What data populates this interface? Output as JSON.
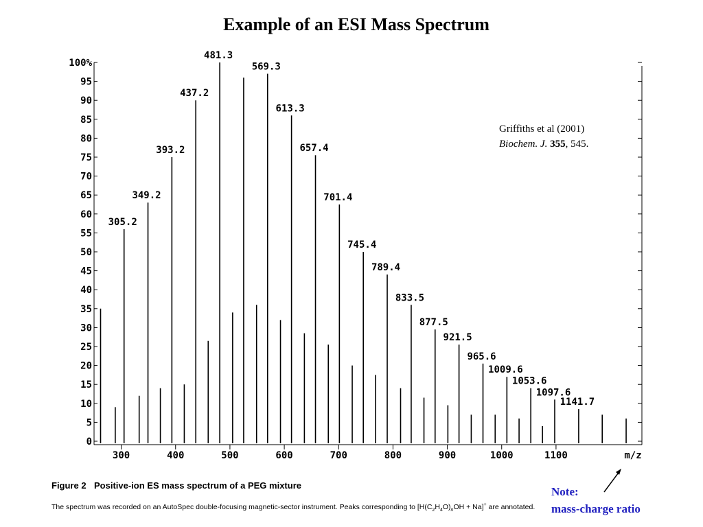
{
  "chart_data": {
    "type": "spectrum",
    "title": "Example of an ESI Mass Spectrum",
    "xlabel": "m/z",
    "xlim": [
      250,
      1258
    ],
    "xticks": [
      300,
      400,
      500,
      600,
      700,
      800,
      900,
      1000,
      1100
    ],
    "ylim": [
      0,
      100
    ],
    "yticks": [
      0,
      5,
      10,
      15,
      20,
      25,
      30,
      35,
      40,
      45,
      50,
      55,
      60,
      65,
      70,
      75,
      80,
      85,
      90,
      95,
      {
        "value": 100,
        "label": "100%"
      }
    ],
    "color": "#000000",
    "peaks": {
      "x": [
        305.2,
        349.2,
        393.2,
        437.2,
        481.3,
        569.3,
        613.3,
        657.4,
        701.4,
        745.4,
        789.4,
        833.5,
        877.5,
        921.5,
        965.6,
        1009.6,
        1053.6,
        1097.6,
        1141.7
      ],
      "values": [
        56,
        63,
        75,
        90,
        100,
        97,
        86,
        75.5,
        62.5,
        50,
        44,
        36,
        29.5,
        25.5,
        20.5,
        17,
        14,
        11,
        8.5
      ]
    },
    "minor_peaks": {
      "x": [
        262,
        289,
        333,
        372,
        416,
        460,
        505,
        525.3,
        549,
        593,
        637,
        681,
        725,
        768,
        814,
        857,
        901,
        944,
        988,
        1032,
        1075,
        1185,
        1229
      ],
      "values": [
        35,
        9,
        12,
        14,
        15,
        26.5,
        34,
        96,
        36,
        32,
        28.5,
        25.5,
        20,
        17.5,
        14,
        11.5,
        9.5,
        7,
        7,
        6,
        4,
        7,
        6
      ]
    }
  },
  "citation": {
    "authors": "Griffiths et al (2001)",
    "journal": "Biochem. J.",
    "volume": "355",
    "pages": ", 545."
  },
  "caption": {
    "label": "Figure 2",
    "title": "Positive-ion ES mass spectrum of a PEG mixture",
    "description": [
      "The spectrum was recorded on an AutoSpec double-focusing magnetic-sector instrument. Peaks corresponding to [H(C",
      "2",
      "H",
      "4",
      "O)",
      "n",
      "OH + Na]",
      "+",
      " are annotated."
    ]
  },
  "note": {
    "label": "Note:",
    "text": "mass-charge ratio"
  }
}
